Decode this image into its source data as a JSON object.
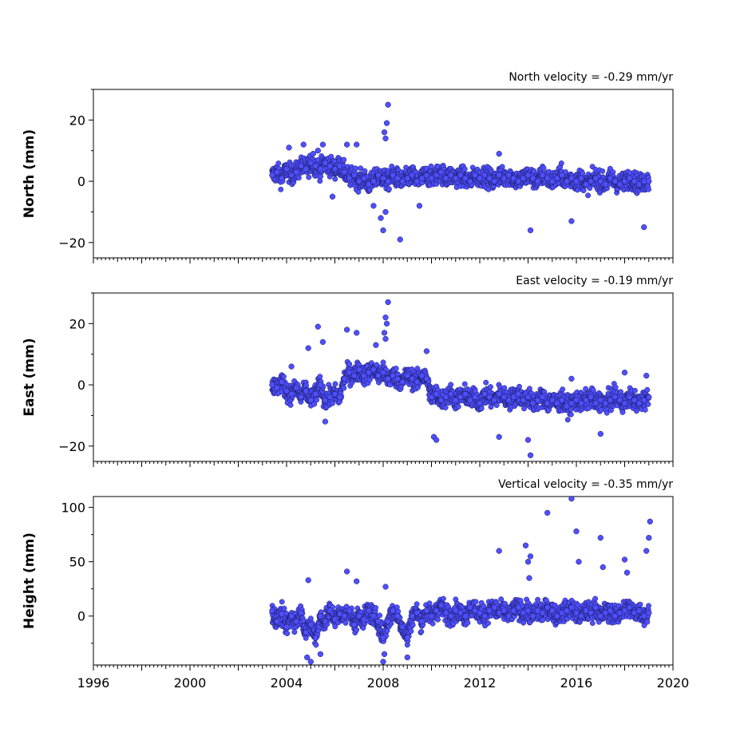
{
  "chart_data": [
    {
      "type": "scatter",
      "title": "North velocity = -0.29 mm/yr",
      "ylabel": "North (mm)",
      "xlim": [
        1996,
        2020
      ],
      "ylim": [
        -25,
        30
      ],
      "yticks": [
        -20,
        0,
        20
      ],
      "yticks_labels": [
        "−20",
        "0",
        "20"
      ],
      "xticks": [
        1996,
        1998,
        2000,
        2002,
        2004,
        2006,
        2008,
        2010,
        2012,
        2014,
        2016,
        2018,
        2020
      ],
      "xtick_labels_shown": false,
      "data_span": [
        2003.4,
        2019.0
      ],
      "color": "#4f4fff",
      "series": [
        {
          "x": [
            2003.4,
            2003.6,
            2003.8,
            2004.0,
            2004.2,
            2004.4,
            2004.6,
            2004.8,
            2005.0,
            2005.2,
            2005.4,
            2005.6,
            2005.8,
            2006.0,
            2006.2,
            2006.4,
            2006.6,
            2006.8,
            2007.0,
            2007.2,
            2007.4,
            2007.6,
            2007.8,
            2008.0,
            2008.2,
            2008.4,
            2008.6,
            2008.8,
            2009.0,
            2009.2,
            2009.4,
            2009.6,
            2009.8,
            2010.0,
            2010.2,
            2010.4,
            2010.6,
            2010.8,
            2011.0,
            2011.2,
            2011.4,
            2011.6,
            2011.8,
            2012.0,
            2012.2,
            2012.4,
            2012.6,
            2012.8,
            2013.0,
            2013.2,
            2013.4,
            2013.6,
            2013.8,
            2014.0,
            2014.2,
            2014.4,
            2014.6,
            2014.8,
            2015.0,
            2015.2,
            2015.4,
            2015.6,
            2015.8,
            2016.0,
            2016.2,
            2016.4,
            2016.6,
            2016.8,
            2017.0,
            2017.2,
            2017.4,
            2017.6,
            2017.8,
            2018.0,
            2018.2,
            2018.4,
            2018.6,
            2018.8,
            2019.0
          ],
          "y": [
            2,
            3,
            1,
            4,
            2,
            3,
            5,
            4,
            6,
            5,
            4,
            6,
            5,
            4,
            5,
            3,
            1,
            2,
            0,
            1,
            -1,
            0,
            2,
            1,
            0,
            2,
            1,
            0,
            1,
            2,
            0,
            1,
            2,
            1,
            2,
            3,
            1,
            2,
            1,
            2,
            1,
            0,
            2,
            1,
            2,
            1,
            0,
            2,
            1,
            2,
            1,
            0,
            1,
            2,
            1,
            0,
            2,
            1,
            0,
            1,
            2,
            0,
            1,
            0,
            1,
            -1,
            0,
            1,
            0,
            -1,
            1,
            0,
            -1,
            0,
            1,
            0,
            -1,
            0,
            0
          ]
        },
        {
          "x": [
            2004.1,
            2004.7,
            2005.1,
            2005.3,
            2005.5,
            2005.9,
            2006.5,
            2006.9,
            2007.6,
            2007.9,
            2008.0,
            2008.1,
            2008.15,
            2008.2,
            2008.05,
            2008.1,
            2008.7,
            2009.5,
            2012.8,
            2014.1,
            2015.8,
            2018.8
          ],
          "y": [
            11,
            12,
            9,
            10,
            12,
            -5,
            12,
            12,
            -8,
            -12,
            -16,
            14,
            19,
            25,
            16,
            -10,
            -19,
            -8,
            9,
            -16,
            -13,
            -15
          ]
        }
      ]
    },
    {
      "type": "scatter",
      "title": "East velocity = -0.19 mm/yr",
      "ylabel": "East (mm)",
      "xlim": [
        1996,
        2020
      ],
      "ylim": [
        -25,
        30
      ],
      "yticks": [
        -20,
        0,
        20
      ],
      "yticks_labels": [
        "−20",
        "0",
        "20"
      ],
      "xticks": [
        1996,
        1998,
        2000,
        2002,
        2004,
        2006,
        2008,
        2010,
        2012,
        2014,
        2016,
        2018,
        2020
      ],
      "xtick_labels_shown": false,
      "data_span": [
        2003.4,
        2019.0
      ],
      "color": "#4f4fff",
      "series": [
        {
          "x": [
            2003.4,
            2003.6,
            2003.8,
            2004.0,
            2004.2,
            2004.4,
            2004.6,
            2004.8,
            2005.0,
            2005.2,
            2005.4,
            2005.6,
            2005.8,
            2006.0,
            2006.2,
            2006.4,
            2006.6,
            2006.8,
            2007.0,
            2007.2,
            2007.4,
            2007.6,
            2007.8,
            2008.0,
            2008.2,
            2008.4,
            2008.6,
            2008.8,
            2009.0,
            2009.2,
            2009.4,
            2009.6,
            2009.8,
            2010.0,
            2010.2,
            2010.4,
            2010.6,
            2010.8,
            2011.0,
            2011.2,
            2011.4,
            2011.6,
            2011.8,
            2012.0,
            2012.2,
            2012.4,
            2012.6,
            2012.8,
            2013.0,
            2013.2,
            2013.4,
            2013.6,
            2013.8,
            2014.0,
            2014.2,
            2014.4,
            2014.6,
            2014.8,
            2015.0,
            2015.2,
            2015.4,
            2015.6,
            2015.8,
            2016.0,
            2016.2,
            2016.4,
            2016.6,
            2016.8,
            2017.0,
            2017.2,
            2017.4,
            2017.6,
            2017.8,
            2018.0,
            2018.2,
            2018.4,
            2018.6,
            2018.8,
            2019.0
          ],
          "y": [
            0,
            -1,
            1,
            -2,
            -3,
            -1,
            -4,
            -2,
            -5,
            -3,
            0,
            -5,
            -4,
            -3,
            -4,
            2,
            4,
            3,
            5,
            3,
            4,
            5,
            3,
            4,
            2,
            3,
            2,
            1,
            3,
            2,
            1,
            3,
            2,
            -4,
            -3,
            -5,
            -4,
            -3,
            -5,
            -4,
            -3,
            -5,
            -4,
            -6,
            -3,
            -4,
            -5,
            -3,
            -4,
            -5,
            -4,
            -3,
            -5,
            -4,
            -6,
            -5,
            -4,
            -6,
            -5,
            -6,
            -5,
            -7,
            -6,
            -5,
            -6,
            -5,
            -4,
            -6,
            -5,
            -6,
            -5,
            -4,
            -5,
            -6,
            -4,
            -5,
            -6,
            -5,
            -4
          ]
        },
        {
          "x": [
            2004.2,
            2004.9,
            2005.3,
            2005.5,
            2005.6,
            2006.5,
            2006.9,
            2007.7,
            2008.05,
            2008.1,
            2008.15,
            2008.2,
            2008.1,
            2009.8,
            2010.1,
            2010.2,
            2012.8,
            2014.0,
            2014.1,
            2015.8,
            2017.0,
            2018.0,
            2018.9
          ],
          "y": [
            6,
            12,
            19,
            14,
            -12,
            18,
            17,
            13,
            17,
            22,
            20,
            27,
            15,
            11,
            -17,
            -18,
            -17,
            -18,
            -23,
            2,
            -16,
            4,
            3
          ]
        }
      ]
    },
    {
      "type": "scatter",
      "title": "Vertical velocity = -0.35 mm/yr",
      "ylabel": "Height (mm)",
      "xlim": [
        1996,
        2020
      ],
      "ylim": [
        -45,
        110
      ],
      "yticks": [
        0,
        50,
        100
      ],
      "yticks_labels": [
        "0",
        "50",
        "100"
      ],
      "xticks": [
        1996,
        1998,
        2000,
        2002,
        2004,
        2006,
        2008,
        2010,
        2012,
        2014,
        2016,
        2018,
        2020
      ],
      "xtick_labels": [
        "1996",
        "2000",
        "2004",
        "2008",
        "2012",
        "2016",
        "2020"
      ],
      "xtick_labels_at": [
        1996,
        2000,
        2004,
        2008,
        2012,
        2016,
        2020
      ],
      "xtick_labels_shown": true,
      "data_span": [
        2003.4,
        2019.0
      ],
      "color": "#4f4fff",
      "series": [
        {
          "x": [
            2003.4,
            2003.6,
            2003.8,
            2004.0,
            2004.2,
            2004.4,
            2004.6,
            2004.8,
            2005.0,
            2005.2,
            2005.4,
            2005.6,
            2005.8,
            2006.0,
            2006.2,
            2006.4,
            2006.6,
            2006.8,
            2007.0,
            2007.2,
            2007.4,
            2007.6,
            2007.8,
            2008.0,
            2008.2,
            2008.4,
            2008.6,
            2008.8,
            2009.0,
            2009.2,
            2009.4,
            2009.6,
            2009.8,
            2010.0,
            2010.2,
            2010.4,
            2010.6,
            2010.8,
            2011.0,
            2011.2,
            2011.4,
            2011.6,
            2011.8,
            2012.0,
            2012.2,
            2012.4,
            2012.6,
            2012.8,
            2013.0,
            2013.2,
            2013.4,
            2013.6,
            2013.8,
            2014.0,
            2014.2,
            2014.4,
            2014.6,
            2014.8,
            2015.0,
            2015.2,
            2015.4,
            2015.6,
            2015.8,
            2016.0,
            2016.2,
            2016.4,
            2016.6,
            2016.8,
            2017.0,
            2017.2,
            2017.4,
            2017.6,
            2017.8,
            2018.0,
            2018.2,
            2018.4,
            2018.6,
            2018.8,
            2019.0
          ],
          "y": [
            5,
            -5,
            2,
            -10,
            0,
            -5,
            3,
            -15,
            -8,
            -20,
            0,
            -5,
            5,
            -3,
            2,
            0,
            5,
            -8,
            0,
            -3,
            5,
            0,
            -5,
            -20,
            -5,
            5,
            0,
            -10,
            -20,
            0,
            3,
            -5,
            5,
            0,
            5,
            10,
            3,
            0,
            5,
            3,
            0,
            8,
            5,
            3,
            0,
            5,
            8,
            3,
            5,
            0,
            5,
            8,
            3,
            5,
            0,
            5,
            3,
            8,
            5,
            0,
            3,
            5,
            8,
            3,
            0,
            5,
            3,
            8,
            0,
            3,
            5,
            0,
            3,
            5,
            8,
            3,
            5,
            0,
            3
          ]
        },
        {
          "x": [
            2004.9,
            2004.85,
            2005.0,
            2005.4,
            2006.5,
            2006.9,
            2008.0,
            2008.05,
            2008.1,
            2009.0,
            2012.8,
            2013.9,
            2014.0,
            2014.05,
            2014.1,
            2014.8,
            2015.8,
            2016.0,
            2016.1,
            2017.0,
            2017.1,
            2018.0,
            2018.1,
            2018.9,
            2019.0,
            2019.05
          ],
          "y": [
            33,
            -38,
            -42,
            -35,
            41,
            32,
            -42,
            -35,
            27,
            -38,
            60,
            65,
            50,
            35,
            55,
            95,
            108,
            78,
            50,
            72,
            45,
            52,
            40,
            60,
            72,
            87
          ]
        }
      ]
    }
  ]
}
